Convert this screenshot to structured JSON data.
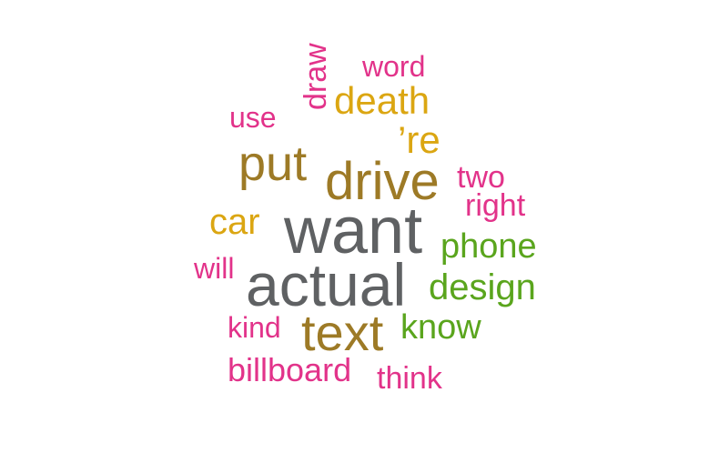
{
  "colors": {
    "gray": "#5f6163",
    "olive": "#9d7a26",
    "gold": "#dba612",
    "magenta": "#e2338a",
    "green": "#5aa51d"
  },
  "words": [
    {
      "text": "want",
      "color": "gray"
    },
    {
      "text": "actual",
      "color": "gray"
    },
    {
      "text": "text",
      "color": "olive"
    },
    {
      "text": "drive",
      "color": "olive"
    },
    {
      "text": "put",
      "color": "olive"
    },
    {
      "text": "death",
      "color": "gold"
    },
    {
      "text": "car",
      "color": "gold"
    },
    {
      "text": "’re",
      "color": "gold"
    },
    {
      "text": "design",
      "color": "green"
    },
    {
      "text": "phone",
      "color": "green"
    },
    {
      "text": "know",
      "color": "green"
    },
    {
      "text": "billboard",
      "color": "magenta"
    },
    {
      "text": "think",
      "color": "magenta"
    },
    {
      "text": "kind",
      "color": "magenta"
    },
    {
      "text": "will",
      "color": "magenta"
    },
    {
      "text": "right",
      "color": "magenta"
    },
    {
      "text": "two",
      "color": "magenta"
    },
    {
      "text": "use",
      "color": "magenta"
    },
    {
      "text": "word",
      "color": "magenta"
    },
    {
      "text": "draw",
      "color": "magenta"
    }
  ]
}
